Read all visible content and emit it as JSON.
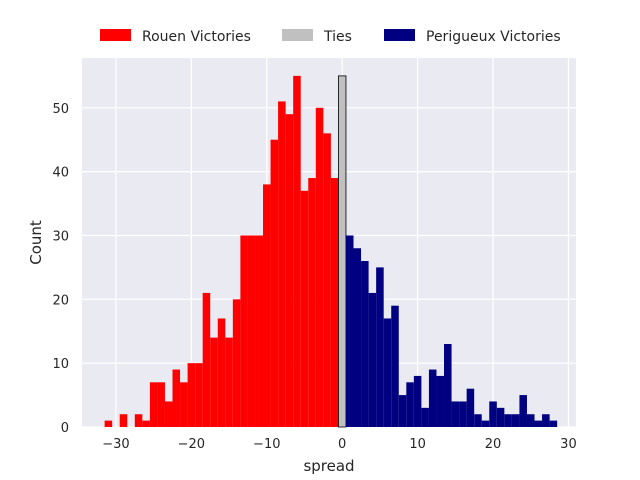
{
  "chart_data": {
    "type": "bar",
    "subtype": "histogram",
    "xlabel": "spread",
    "ylabel": "Count",
    "xlim": [
      -34.5,
      31
    ],
    "ylim": [
      0,
      57.8
    ],
    "xticks": [
      -30,
      -20,
      -10,
      0,
      10,
      20,
      30
    ],
    "xtick_labels": [
      "−30",
      "−20",
      "−10",
      "0",
      "10",
      "20",
      "30"
    ],
    "yticks": [
      0,
      10,
      20,
      30,
      40,
      50
    ],
    "ytick_labels": [
      "0",
      "10",
      "20",
      "30",
      "40",
      "50"
    ],
    "grid": true,
    "legend_position": "top-center",
    "bin_width": 1,
    "series": [
      {
        "name": "Rouen Victories",
        "color": "#ff0000",
        "x": [
          -31,
          -29,
          -27,
          -26,
          -25,
          -24,
          -23,
          -22,
          -21,
          -20,
          -19,
          -18,
          -17,
          -16,
          -15,
          -14,
          -13,
          -12,
          -11,
          -10,
          -9,
          -8,
          -7,
          -6,
          -5,
          -4,
          -3,
          -2,
          -1
        ],
        "values": [
          1,
          2,
          2,
          1,
          7,
          7,
          4,
          9,
          7,
          10,
          10,
          21,
          14,
          17,
          14,
          20,
          30,
          30,
          30,
          38,
          45,
          51,
          49,
          55,
          37,
          39,
          50,
          46,
          39
        ]
      },
      {
        "name": "Ties",
        "color": "#c0c0c0",
        "x": [
          0
        ],
        "values": [
          55
        ]
      },
      {
        "name": "Perigueux Victories",
        "color": "#000080",
        "x": [
          1,
          2,
          3,
          4,
          5,
          6,
          7,
          8,
          9,
          10,
          11,
          12,
          13,
          14,
          15,
          16,
          17,
          18,
          19,
          20,
          21,
          22,
          23,
          24,
          25,
          26,
          27,
          28
        ],
        "values": [
          30,
          28,
          26,
          21,
          25,
          17,
          19,
          5,
          7,
          8,
          3,
          9,
          8,
          13,
          4,
          4,
          6,
          2,
          1,
          4,
          3,
          2,
          2,
          5,
          2,
          1,
          2,
          1
        ]
      }
    ]
  }
}
